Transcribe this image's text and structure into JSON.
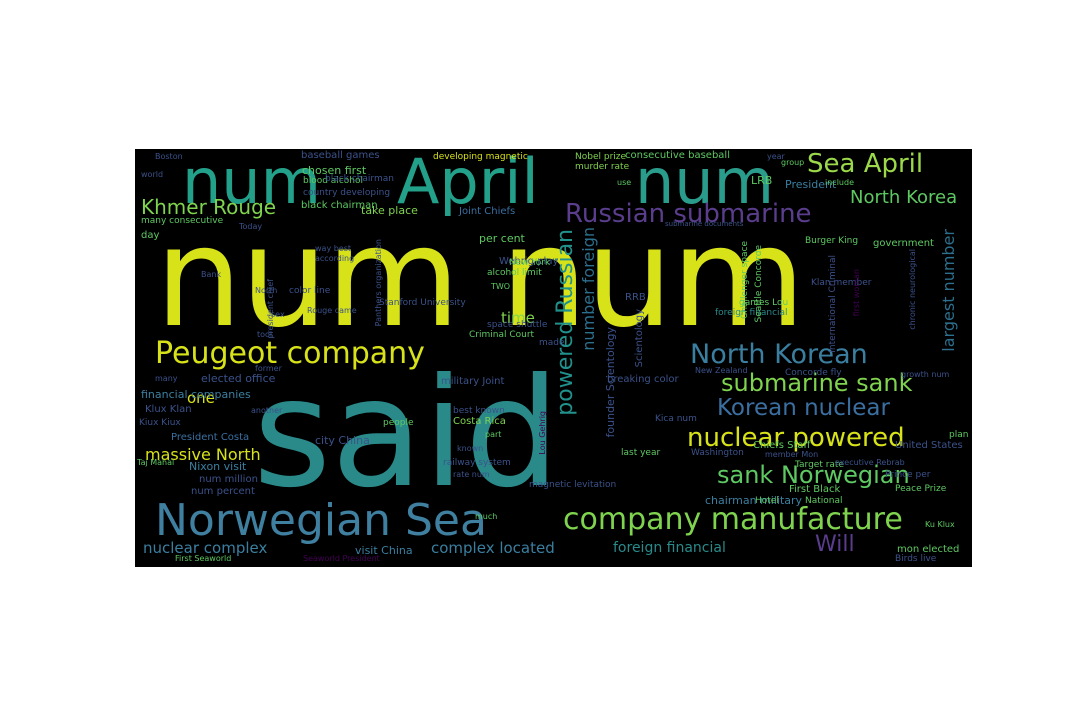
{
  "wordcloud": {
    "background": "#000000",
    "palette": [
      "#fde725",
      "#5ec962",
      "#21918c",
      "#3b528b",
      "#440154"
    ],
    "words": [
      {
        "text": "num num",
        "color": "#d8e219"
      },
      {
        "text": "said",
        "color": "#2a8a8a"
      },
      {
        "text": "April",
        "color": "#23a08a"
      },
      {
        "text": "num",
        "color": "#23a08a"
      },
      {
        "text": "num",
        "color": "#2a9c8c"
      },
      {
        "text": "Norwegian Sea",
        "color": "#3f7fa0"
      },
      {
        "text": "company manufacture",
        "color": "#7fd34e"
      },
      {
        "text": "Peugeot company",
        "color": "#d8e219"
      },
      {
        "text": "Russian submarine",
        "color": "#5a3d8c"
      },
      {
        "text": "North Korean",
        "color": "#3b7fa0"
      },
      {
        "text": "nuclear powered",
        "color": "#d8e219"
      },
      {
        "text": "submarine sank",
        "color": "#7fd34e"
      },
      {
        "text": "sank Norwegian",
        "color": "#5ec962"
      },
      {
        "text": "Korean nuclear",
        "color": "#3b6fa0"
      },
      {
        "text": "Sea April",
        "color": "#9bd94a"
      },
      {
        "text": "Khmer Rouge",
        "color": "#7fd34e"
      },
      {
        "text": "North Korea",
        "color": "#5ec962"
      },
      {
        "text": "Will",
        "color": "#5a3d8c"
      },
      {
        "text": "massive North",
        "color": "#d8e219"
      },
      {
        "text": "nuclear complex",
        "color": "#3b7fa0"
      },
      {
        "text": "complex located",
        "color": "#3b7fa0"
      },
      {
        "text": "foreign financial",
        "color": "#2a8a8a"
      },
      {
        "text": "time",
        "color": "#7fd34e"
      },
      {
        "text": "one",
        "color": "#d8e219"
      },
      {
        "text": "powered Russian",
        "color": "#21918c"
      },
      {
        "text": "number foreign",
        "color": "#2c6f8e"
      },
      {
        "text": "largest number",
        "color": "#2c6f8e"
      },
      {
        "text": "chosen first",
        "color": "#5ec962"
      },
      {
        "text": "take place",
        "color": "#7fd34e"
      },
      {
        "text": "Joint Chiefs",
        "color": "#3b6fa0"
      },
      {
        "text": "per cent",
        "color": "#5ec962"
      },
      {
        "text": "government",
        "color": "#5ec962"
      },
      {
        "text": "President",
        "color": "#3b7fa0"
      },
      {
        "text": "financial companies",
        "color": "#3b7fa0"
      },
      {
        "text": "elected office",
        "color": "#3b528b"
      },
      {
        "text": "city China",
        "color": "#3b528b"
      },
      {
        "text": "Costa Rica",
        "color": "#7fd34e"
      },
      {
        "text": "military Joint",
        "color": "#3b528b"
      },
      {
        "text": "Nixon visit",
        "color": "#3b7fa0"
      },
      {
        "text": "President Costa",
        "color": "#3b6fa0"
      },
      {
        "text": "num million",
        "color": "#3b528b"
      },
      {
        "text": "num percent",
        "color": "#3b528b"
      },
      {
        "text": "visit China",
        "color": "#3b7fa0"
      },
      {
        "text": "foreign financial",
        "color": "#2a8a8a"
      },
      {
        "text": "chairman military",
        "color": "#3b7fa0"
      },
      {
        "text": "First Black",
        "color": "#5ec962"
      },
      {
        "text": "Chiefs Staff",
        "color": "#5ec962"
      },
      {
        "text": "mon elected",
        "color": "#5ec962"
      },
      {
        "text": "black chairman",
        "color": "#5ec962"
      },
      {
        "text": "Scientology",
        "color": "#3b528b"
      },
      {
        "text": "founder Scientology",
        "color": "#3b528b"
      },
      {
        "text": "breaking color",
        "color": "#3b528b"
      },
      {
        "text": "baseball games",
        "color": "#3b528b"
      },
      {
        "text": "consecutive baseball",
        "color": "#5ec962"
      },
      {
        "text": "Nobel prize",
        "color": "#7fd34e"
      },
      {
        "text": "murder rate",
        "color": "#7fd34e"
      },
      {
        "text": "developing magnetic",
        "color": "#d8e219"
      },
      {
        "text": "many consecutive",
        "color": "#5ec962"
      },
      {
        "text": "Wehrig play",
        "color": "#3b528b"
      },
      {
        "text": "Klux Klan",
        "color": "#3b528b"
      },
      {
        "text": "United States",
        "color": "#3b528b"
      },
      {
        "text": "LRB",
        "color": "#5ec962"
      },
      {
        "text": "RRB",
        "color": "#3b528b"
      },
      {
        "text": "made",
        "color": "#3b528b"
      },
      {
        "text": "day",
        "color": "#5ec962"
      },
      {
        "text": "Kica num",
        "color": "#3b528b"
      },
      {
        "text": "Burger King",
        "color": "#5ec962"
      },
      {
        "text": "magnetic levitation",
        "color": "#3b528b"
      },
      {
        "text": "railway system",
        "color": "#3b528b"
      },
      {
        "text": "last year",
        "color": "#5ec962"
      },
      {
        "text": "Washington",
        "color": "#3b528b"
      },
      {
        "text": "Stanford University",
        "color": "#3b528b"
      },
      {
        "text": "Kiux Kiux",
        "color": "#3b528b"
      },
      {
        "text": "Peace Prize",
        "color": "#5ec962"
      },
      {
        "text": "Birds live",
        "color": "#3b528b"
      },
      {
        "text": "blood alcohol",
        "color": "#5ec962"
      },
      {
        "text": "country developing",
        "color": "#3b528b"
      },
      {
        "text": "New York",
        "color": "#5ec962"
      },
      {
        "text": "alcohol limit",
        "color": "#5ec962"
      },
      {
        "text": "color line",
        "color": "#3b528b"
      },
      {
        "text": "Concorde fly",
        "color": "#3b528b"
      },
      {
        "text": "New Zealand",
        "color": "#3b528b"
      },
      {
        "text": "Taj Mahal",
        "color": "#5ec962"
      },
      {
        "text": "International Criminal",
        "color": "#3b528b"
      },
      {
        "text": "Criminal Court",
        "color": "#5ec962"
      },
      {
        "text": "space shuttle",
        "color": "#3b528b"
      },
      {
        "text": "best known",
        "color": "#3b528b"
      },
      {
        "text": "Target rate",
        "color": "#5ec962"
      },
      {
        "text": "executive Rebrab",
        "color": "#3b528b"
      },
      {
        "text": "Challenger space",
        "color": "#5ec962"
      },
      {
        "text": "Seattle Concorde",
        "color": "#5ec962"
      },
      {
        "text": "president chief",
        "color": "#3b528b"
      },
      {
        "text": "Panthers organization",
        "color": "#3b528b"
      },
      {
        "text": "chronic neurological",
        "color": "#3b528b"
      },
      {
        "text": "submarine documents",
        "color": "#3b528b"
      },
      {
        "text": "First Seaworld",
        "color": "#5ec962"
      },
      {
        "text": "Seaworld President",
        "color": "#440154"
      },
      {
        "text": "Prince per",
        "color": "#3b528b"
      },
      {
        "text": "Hotel",
        "color": "#5ec962"
      },
      {
        "text": "National",
        "color": "#5ec962"
      },
      {
        "text": "black chairman",
        "color": "#3b528b"
      },
      {
        "text": "games Lou",
        "color": "#5ec962"
      },
      {
        "text": "Klan member",
        "color": "#3b528b"
      },
      {
        "text": "people",
        "color": "#5ec962"
      },
      {
        "text": "plan",
        "color": "#5ec962"
      },
      {
        "text": "another",
        "color": "#3b528b"
      },
      {
        "text": "many",
        "color": "#3b528b"
      },
      {
        "text": "former",
        "color": "#3b528b"
      },
      {
        "text": "known",
        "color": "#3b528b"
      },
      {
        "text": "world",
        "color": "#3b528b"
      },
      {
        "text": "group",
        "color": "#5ec962"
      },
      {
        "text": "Ku Klux",
        "color": "#5ec962"
      },
      {
        "text": "include",
        "color": "#5ec962"
      },
      {
        "text": "much",
        "color": "#5ec962"
      },
      {
        "text": "part",
        "color": "#5ec962"
      },
      {
        "text": "Rouge came",
        "color": "#3b528b"
      },
      {
        "text": "TWO",
        "color": "#5ec962"
      },
      {
        "text": "rate num",
        "color": "#3b528b"
      },
      {
        "text": "growth num",
        "color": "#3b528b"
      },
      {
        "text": "member Mon",
        "color": "#3b528b"
      },
      {
        "text": "Lou Gehrig",
        "color": "#440154"
      },
      {
        "text": "first woman",
        "color": "#440154"
      },
      {
        "text": "Boston",
        "color": "#3b528b"
      },
      {
        "text": "sex",
        "color": "#3b528b"
      },
      {
        "text": "use",
        "color": "#5ec962"
      },
      {
        "text": "tool",
        "color": "#3b528b"
      },
      {
        "text": "year",
        "color": "#3b528b"
      },
      {
        "text": "way best",
        "color": "#3b528b"
      },
      {
        "text": "according",
        "color": "#3b528b"
      },
      {
        "text": "Today",
        "color": "#3b528b"
      },
      {
        "text": "North",
        "color": "#3b528b"
      },
      {
        "text": "Bank",
        "color": "#3b528b"
      }
    ]
  }
}
